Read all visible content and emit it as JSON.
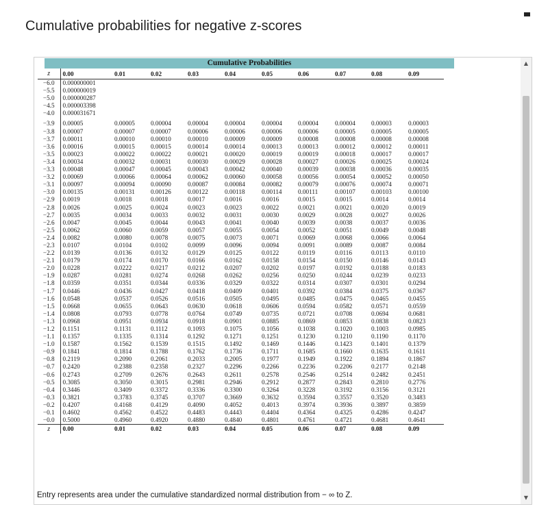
{
  "title": "Cumulative probabilities for negative z-scores",
  "banner": "Cumulative Probabilities",
  "z_label": "z",
  "columns": [
    "0.00",
    "0.01",
    "0.02",
    "0.03",
    "0.04",
    "0.05",
    "0.06",
    "0.07",
    "0.08",
    "0.09"
  ],
  "scroll_up_icon": "▲",
  "scroll_down_icon": "▼",
  "footnote": "Entry represents area under the cumulative standardized normal distribution from  − ∞ to Z.",
  "rows": [
    {
      "z": "−6.0",
      "v": [
        "0.000000001",
        "",
        "",
        "",
        "",
        "",
        "",
        "",
        "",
        ""
      ]
    },
    {
      "z": "−5.5",
      "v": [
        "0.000000019",
        "",
        "",
        "",
        "",
        "",
        "",
        "",
        "",
        ""
      ]
    },
    {
      "z": "−5.0",
      "v": [
        "0.000000287",
        "",
        "",
        "",
        "",
        "",
        "",
        "",
        "",
        ""
      ]
    },
    {
      "z": "−4.5",
      "v": [
        "0.000003398",
        "",
        "",
        "",
        "",
        "",
        "",
        "",
        "",
        ""
      ]
    },
    {
      "z": "−4.0",
      "v": [
        "0.000031671",
        "",
        "",
        "",
        "",
        "",
        "",
        "",
        "",
        ""
      ]
    },
    {
      "z": "−3.9",
      "v": [
        "0.00005",
        "0.00005",
        "0.00004",
        "0.00004",
        "0.00004",
        "0.00004",
        "0.00004",
        "0.00004",
        "0.00003",
        "0.00003"
      ]
    },
    {
      "z": "−3.8",
      "v": [
        "0.00007",
        "0.00007",
        "0.00007",
        "0.00006",
        "0.00006",
        "0.00006",
        "0.00006",
        "0.00005",
        "0.00005",
        "0.00005"
      ]
    },
    {
      "z": "−3.7",
      "v": [
        "0.00011",
        "0.00010",
        "0.00010",
        "0.00010",
        "0.00009",
        "0.00009",
        "0.00008",
        "0.00008",
        "0.00008",
        "0.00008"
      ]
    },
    {
      "z": "−3.6",
      "v": [
        "0.00016",
        "0.00015",
        "0.00015",
        "0.00014",
        "0.00014",
        "0.00013",
        "0.00013",
        "0.00012",
        "0.00012",
        "0.00011"
      ]
    },
    {
      "z": "−3.5",
      "v": [
        "0.00023",
        "0.00022",
        "0.00022",
        "0.00021",
        "0.00020",
        "0.00019",
        "0.00019",
        "0.00018",
        "0.00017",
        "0.00017"
      ]
    },
    {
      "z": "−3.4",
      "v": [
        "0.00034",
        "0.00032",
        "0.00031",
        "0.00030",
        "0.00029",
        "0.00028",
        "0.00027",
        "0.00026",
        "0.00025",
        "0.00024"
      ]
    },
    {
      "z": "−3.3",
      "v": [
        "0.00048",
        "0.00047",
        "0.00045",
        "0.00043",
        "0.00042",
        "0.00040",
        "0.00039",
        "0.00038",
        "0.00036",
        "0.00035"
      ]
    },
    {
      "z": "−3.2",
      "v": [
        "0.00069",
        "0.00066",
        "0.00064",
        "0.00062",
        "0.00060",
        "0.00058",
        "0.00056",
        "0.00054",
        "0.00052",
        "0.00050"
      ]
    },
    {
      "z": "−3.1",
      "v": [
        "0.00097",
        "0.00094",
        "0.00090",
        "0.00087",
        "0.00084",
        "0.00082",
        "0.00079",
        "0.00076",
        "0.00074",
        "0.00071"
      ]
    },
    {
      "z": "−3.0",
      "v": [
        "0.00135",
        "0.00131",
        "0.00126",
        "0.00122",
        "0.00118",
        "0.00114",
        "0.00111",
        "0.00107",
        "0.00103",
        "0.00100"
      ]
    },
    {
      "z": "−2.9",
      "v": [
        "0.0019",
        "0.0018",
        "0.0018",
        "0.0017",
        "0.0016",
        "0.0016",
        "0.0015",
        "0.0015",
        "0.0014",
        "0.0014"
      ]
    },
    {
      "z": "−2.8",
      "v": [
        "0.0026",
        "0.0025",
        "0.0024",
        "0.0023",
        "0.0023",
        "0.0022",
        "0.0021",
        "0.0021",
        "0.0020",
        "0.0019"
      ]
    },
    {
      "z": "−2.7",
      "v": [
        "0.0035",
        "0.0034",
        "0.0033",
        "0.0032",
        "0.0031",
        "0.0030",
        "0.0029",
        "0.0028",
        "0.0027",
        "0.0026"
      ]
    },
    {
      "z": "−2.6",
      "v": [
        "0.0047",
        "0.0045",
        "0.0044",
        "0.0043",
        "0.0041",
        "0.0040",
        "0.0039",
        "0.0038",
        "0.0037",
        "0.0036"
      ]
    },
    {
      "z": "−2.5",
      "v": [
        "0.0062",
        "0.0060",
        "0.0059",
        "0.0057",
        "0.0055",
        "0.0054",
        "0.0052",
        "0.0051",
        "0.0049",
        "0.0048"
      ]
    },
    {
      "z": "−2.4",
      "v": [
        "0.0082",
        "0.0080",
        "0.0078",
        "0.0075",
        "0.0073",
        "0.0071",
        "0.0069",
        "0.0068",
        "0.0066",
        "0.0064"
      ]
    },
    {
      "z": "−2.3",
      "v": [
        "0.0107",
        "0.0104",
        "0.0102",
        "0.0099",
        "0.0096",
        "0.0094",
        "0.0091",
        "0.0089",
        "0.0087",
        "0.0084"
      ]
    },
    {
      "z": "−2.2",
      "v": [
        "0.0139",
        "0.0136",
        "0.0132",
        "0.0129",
        "0.0125",
        "0.0122",
        "0.0119",
        "0.0116",
        "0.0113",
        "0.0110"
      ]
    },
    {
      "z": "−2.1",
      "v": [
        "0.0179",
        "0.0174",
        "0.0170",
        "0.0166",
        "0.0162",
        "0.0158",
        "0.0154",
        "0.0150",
        "0.0146",
        "0.0143"
      ]
    },
    {
      "z": "−2.0",
      "v": [
        "0.0228",
        "0.0222",
        "0.0217",
        "0.0212",
        "0.0207",
        "0.0202",
        "0.0197",
        "0.0192",
        "0.0188",
        "0.0183"
      ]
    },
    {
      "z": "−1.9",
      "v": [
        "0.0287",
        "0.0281",
        "0.0274",
        "0.0268",
        "0.0262",
        "0.0256",
        "0.0250",
        "0.0244",
        "0.0239",
        "0.0233"
      ]
    },
    {
      "z": "−1.8",
      "v": [
        "0.0359",
        "0.0351",
        "0.0344",
        "0.0336",
        "0.0329",
        "0.0322",
        "0.0314",
        "0.0307",
        "0.0301",
        "0.0294"
      ]
    },
    {
      "z": "−1.7",
      "v": [
        "0.0446",
        "0.0436",
        "0.0427",
        "0.0418",
        "0.0409",
        "0.0401",
        "0.0392",
        "0.0384",
        "0.0375",
        "0.0367"
      ]
    },
    {
      "z": "−1.6",
      "v": [
        "0.0548",
        "0.0537",
        "0.0526",
        "0.0516",
        "0.0505",
        "0.0495",
        "0.0485",
        "0.0475",
        "0.0465",
        "0.0455"
      ]
    },
    {
      "z": "−1.5",
      "v": [
        "0.0668",
        "0.0655",
        "0.0643",
        "0.0630",
        "0.0618",
        "0.0606",
        "0.0594",
        "0.0582",
        "0.0571",
        "0.0559"
      ]
    },
    {
      "z": "−1.4",
      "v": [
        "0.0808",
        "0.0793",
        "0.0778",
        "0.0764",
        "0.0749",
        "0.0735",
        "0.0721",
        "0.0708",
        "0.0694",
        "0.0681"
      ]
    },
    {
      "z": "−1.3",
      "v": [
        "0.0968",
        "0.0951",
        "0.0934",
        "0.0918",
        "0.0901",
        "0.0885",
        "0.0869",
        "0.0853",
        "0.0838",
        "0.0823"
      ]
    },
    {
      "z": "−1.2",
      "v": [
        "0.1151",
        "0.1131",
        "0.1112",
        "0.1093",
        "0.1075",
        "0.1056",
        "0.1038",
        "0.1020",
        "0.1003",
        "0.0985"
      ]
    },
    {
      "z": "−1.1",
      "v": [
        "0.1357",
        "0.1335",
        "0.1314",
        "0.1292",
        "0.1271",
        "0.1251",
        "0.1230",
        "0.1210",
        "0.1190",
        "0.1170"
      ]
    },
    {
      "z": "−1.0",
      "v": [
        "0.1587",
        "0.1562",
        "0.1539",
        "0.1515",
        "0.1492",
        "0.1469",
        "0.1446",
        "0.1423",
        "0.1401",
        "0.1379"
      ]
    },
    {
      "z": "−0.9",
      "v": [
        "0.1841",
        "0.1814",
        "0.1788",
        "0.1762",
        "0.1736",
        "0.1711",
        "0.1685",
        "0.1660",
        "0.1635",
        "0.1611"
      ]
    },
    {
      "z": "−0.8",
      "v": [
        "0.2119",
        "0.2090",
        "0.2061",
        "0.2033",
        "0.2005",
        "0.1977",
        "0.1949",
        "0.1922",
        "0.1894",
        "0.1867"
      ]
    },
    {
      "z": "−0.7",
      "v": [
        "0.2420",
        "0.2388",
        "0.2358",
        "0.2327",
        "0.2296",
        "0.2266",
        "0.2236",
        "0.2206",
        "0.2177",
        "0.2148"
      ]
    },
    {
      "z": "−0.6",
      "v": [
        "0.2743",
        "0.2709",
        "0.2676",
        "0.2643",
        "0.2611",
        "0.2578",
        "0.2546",
        "0.2514",
        "0.2482",
        "0.2451"
      ]
    },
    {
      "z": "−0.5",
      "v": [
        "0.3085",
        "0.3050",
        "0.3015",
        "0.2981",
        "0.2946",
        "0.2912",
        "0.2877",
        "0.2843",
        "0.2810",
        "0.2776"
      ]
    },
    {
      "z": "−0.4",
      "v": [
        "0.3446",
        "0.3409",
        "0.3372",
        "0.3336",
        "0.3300",
        "0.3264",
        "0.3228",
        "0.3192",
        "0.3156",
        "0.3121"
      ]
    },
    {
      "z": "−0.3",
      "v": [
        "0.3821",
        "0.3783",
        "0.3745",
        "0.3707",
        "0.3669",
        "0.3632",
        "0.3594",
        "0.3557",
        "0.3520",
        "0.3483"
      ]
    },
    {
      "z": "−0.2",
      "v": [
        "0.4207",
        "0.4168",
        "0.4129",
        "0.4090",
        "0.4052",
        "0.4013",
        "0.3974",
        "0.3936",
        "0.3897",
        "0.3859"
      ]
    },
    {
      "z": "−0.1",
      "v": [
        "0.4602",
        "0.4562",
        "0.4522",
        "0.4483",
        "0.4443",
        "0.4404",
        "0.4364",
        "0.4325",
        "0.4286",
        "0.4247"
      ]
    },
    {
      "z": "−0.0",
      "v": [
        "0.5000",
        "0.4960",
        "0.4920",
        "0.4880",
        "0.4840",
        "0.4801",
        "0.4761",
        "0.4721",
        "0.4681",
        "0.4641"
      ]
    }
  ]
}
